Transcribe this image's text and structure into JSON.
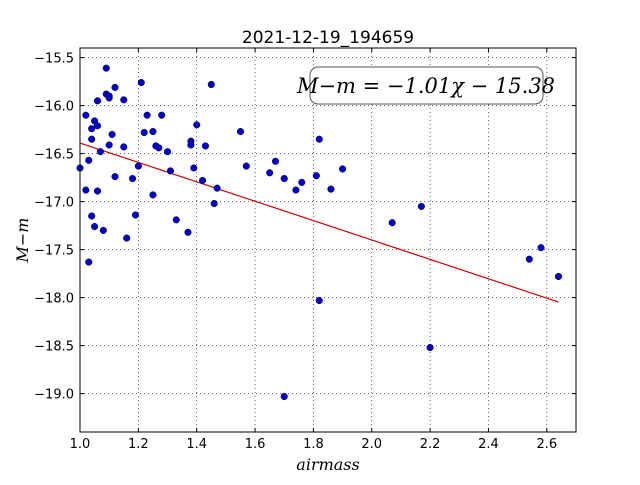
{
  "chart_data": {
    "type": "scatter",
    "title": "2021-12-19_194659",
    "xlabel": "airmass",
    "ylabel": "M−m",
    "xlim": [
      1.0,
      2.7
    ],
    "ylim": [
      -19.4,
      -15.4
    ],
    "y_inverted": true,
    "xticks": [
      1.0,
      1.2,
      1.4,
      1.6,
      1.8,
      2.0,
      2.2,
      2.4,
      2.6
    ],
    "xtick_labels": [
      "1.0",
      "1.2",
      "1.4",
      "1.6",
      "1.8",
      "2.0",
      "2.2",
      "2.4",
      "2.6"
    ],
    "yticks": [
      -15.5,
      -16.0,
      -16.5,
      -17.0,
      -17.5,
      -18.0,
      -18.5,
      -19.0
    ],
    "ytick_labels": [
      "−15.5",
      "−16.0",
      "−16.5",
      "−17.0",
      "−17.5",
      "−18.0",
      "−18.5",
      "−19.0"
    ],
    "grid": true,
    "annotation": "M−m = −1.01χ − 15.38",
    "fit_line": {
      "slope": -1.01,
      "intercept": -15.38,
      "x_range": [
        1.0,
        2.64
      ],
      "color": "#cc0000"
    },
    "marker_color": "#0000cc",
    "points": {
      "x": [
        1.0,
        1.02,
        1.02,
        1.03,
        1.03,
        1.04,
        1.04,
        1.04,
        1.05,
        1.05,
        1.06,
        1.06,
        1.06,
        1.07,
        1.08,
        1.09,
        1.09,
        1.1,
        1.1,
        1.1,
        1.11,
        1.12,
        1.12,
        1.15,
        1.15,
        1.16,
        1.18,
        1.19,
        1.2,
        1.21,
        1.22,
        1.23,
        1.25,
        1.25,
        1.26,
        1.27,
        1.28,
        1.3,
        1.31,
        1.33,
        1.37,
        1.38,
        1.38,
        1.39,
        1.4,
        1.42,
        1.43,
        1.45,
        1.46,
        1.47,
        1.55,
        1.57,
        1.65,
        1.67,
        1.7,
        1.7,
        1.74,
        1.76,
        1.81,
        1.82,
        1.82,
        1.86,
        1.9,
        2.07,
        2.17,
        2.2,
        2.54,
        2.58,
        2.64
      ],
      "y": [
        -16.65,
        -16.88,
        -16.1,
        -17.63,
        -16.57,
        -16.24,
        -16.35,
        -17.15,
        -17.26,
        -16.16,
        -16.21,
        -15.95,
        -16.89,
        -16.48,
        -17.3,
        -15.88,
        -15.61,
        -15.92,
        -16.41,
        -15.9,
        -16.3,
        -15.81,
        -16.74,
        -15.94,
        -16.43,
        -17.38,
        -16.76,
        -17.14,
        -16.63,
        -15.76,
        -16.28,
        -16.1,
        -16.27,
        -16.93,
        -16.42,
        -16.44,
        -16.1,
        -16.48,
        -16.68,
        -17.19,
        -17.32,
        -16.37,
        -16.41,
        -16.65,
        -16.2,
        -16.78,
        -16.42,
        -15.78,
        -17.02,
        -16.86,
        -16.27,
        -16.63,
        -16.7,
        -16.58,
        -16.76,
        -19.03,
        -16.88,
        -16.8,
        -16.73,
        -16.35,
        -18.03,
        -16.87,
        -16.66,
        -17.22,
        -17.05,
        -18.52,
        -17.6,
        -17.48,
        -17.78
      ]
    }
  }
}
